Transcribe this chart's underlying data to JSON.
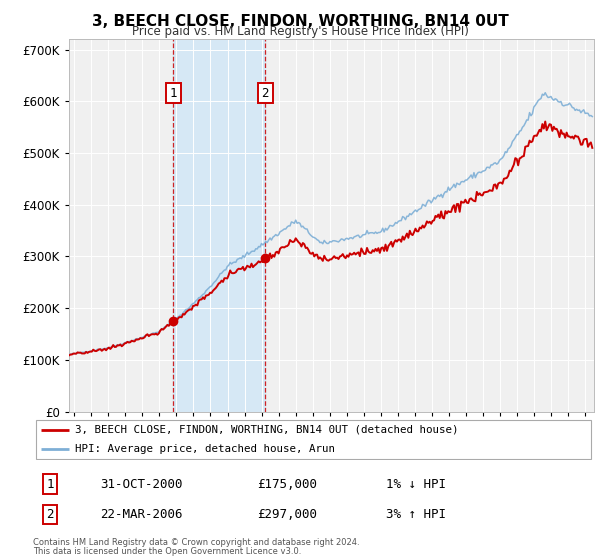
{
  "title": "3, BEECH CLOSE, FINDON, WORTHING, BN14 0UT",
  "subtitle": "Price paid vs. HM Land Registry's House Price Index (HPI)",
  "sale1_date": "31-OCT-2000",
  "sale1_price": 175000,
  "sale1_x": 2000.83,
  "sale1_label": "1",
  "sale1_hpi_note": "1% ↓ HPI",
  "sale2_date": "22-MAR-2006",
  "sale2_price": 297000,
  "sale2_x": 2006.22,
  "sale2_label": "2",
  "sale2_hpi_note": "3% ↑ HPI",
  "legend_line1": "3, BEECH CLOSE, FINDON, WORTHING, BN14 0UT (detached house)",
  "legend_line2": "HPI: Average price, detached house, Arun",
  "footer1": "Contains HM Land Registry data © Crown copyright and database right 2024.",
  "footer2": "This data is licensed under the Open Government Licence v3.0.",
  "hpi_color": "#7eafd6",
  "price_color": "#cc0000",
  "background_color": "#ffffff",
  "plot_bg_color": "#f0f0f0",
  "shade_color": "#d6e8f5",
  "ylim": [
    0,
    720000
  ],
  "xlim_start": 1994.7,
  "xlim_end": 2025.5
}
